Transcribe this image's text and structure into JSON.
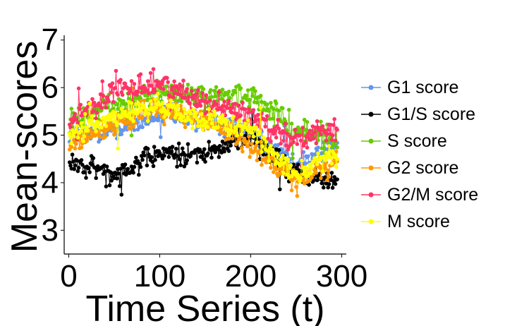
{
  "chart_data": {
    "type": "line",
    "title": "",
    "xlabel": "Time Series (t)",
    "ylabel": "Mean-scores",
    "xlim": [
      -5,
      305
    ],
    "ylim": [
      2.5,
      7.1
    ],
    "xticks": [
      0,
      100,
      200,
      300
    ],
    "yticks": [
      3,
      4,
      5,
      6,
      7
    ],
    "n_points": 295,
    "legend_position": "right",
    "series": [
      {
        "name": "G1 score",
        "color": "#6495ED",
        "anchors": [
          [
            0,
            5.0
          ],
          [
            50,
            5.1
          ],
          [
            100,
            5.4
          ],
          [
            150,
            5.3
          ],
          [
            200,
            5.1
          ],
          [
            250,
            4.4
          ],
          [
            295,
            4.8
          ]
        ],
        "noise": 0.2
      },
      {
        "name": "G1/S score",
        "color": "#000000",
        "anchors": [
          [
            0,
            4.4
          ],
          [
            50,
            4.2
          ],
          [
            100,
            4.6
          ],
          [
            150,
            4.6
          ],
          [
            200,
            5.0
          ],
          [
            250,
            4.2
          ],
          [
            295,
            4.0
          ]
        ],
        "noise": 0.22
      },
      {
        "name": "S score",
        "color": "#66CC00",
        "anchors": [
          [
            0,
            5.3
          ],
          [
            50,
            5.6
          ],
          [
            100,
            5.9
          ],
          [
            150,
            5.8
          ],
          [
            200,
            5.8
          ],
          [
            250,
            5.1
          ],
          [
            295,
            4.9
          ]
        ],
        "noise": 0.25
      },
      {
        "name": "G2 score",
        "color": "#FF9900",
        "anchors": [
          [
            0,
            4.8
          ],
          [
            50,
            5.2
          ],
          [
            100,
            5.6
          ],
          [
            150,
            5.3
          ],
          [
            200,
            4.8
          ],
          [
            250,
            4.0
          ],
          [
            295,
            4.5
          ]
        ],
        "noise": 0.22
      },
      {
        "name": "G2/M score",
        "color": "#FF3366",
        "anchors": [
          [
            0,
            5.3
          ],
          [
            50,
            5.9
          ],
          [
            100,
            6.1
          ],
          [
            150,
            5.7
          ],
          [
            200,
            5.4
          ],
          [
            250,
            4.9
          ],
          [
            295,
            5.1
          ]
        ],
        "noise": 0.25
      },
      {
        "name": "M score",
        "color": "#FFFF00",
        "anchors": [
          [
            0,
            5.0
          ],
          [
            50,
            5.4
          ],
          [
            100,
            5.6
          ],
          [
            150,
            5.3
          ],
          [
            200,
            5.1
          ],
          [
            250,
            4.2
          ],
          [
            295,
            4.6
          ]
        ],
        "noise": 0.22
      }
    ]
  }
}
